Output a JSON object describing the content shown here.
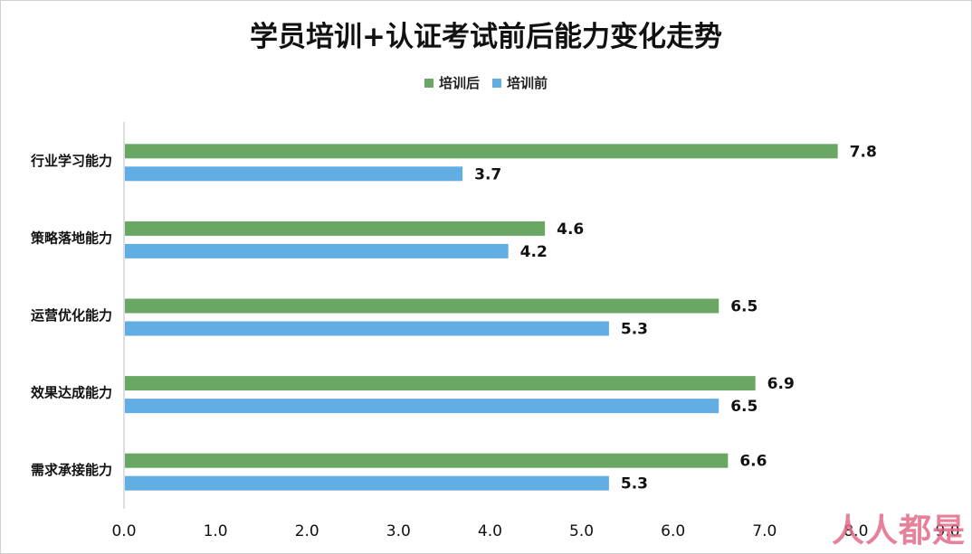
{
  "chart_data": {
    "type": "bar",
    "orientation": "horizontal",
    "title": "学员培训+认证考试前后能力变化走势",
    "categories": [
      "行业学习能力",
      "策略落地能力",
      "运营优化能力",
      "效果达成能力",
      "需求承接能力"
    ],
    "series": [
      {
        "name": "培训后",
        "color": "#6aa765",
        "values": [
          7.8,
          4.6,
          6.5,
          6.9,
          6.6
        ]
      },
      {
        "name": "培训前",
        "color": "#62aee4",
        "values": [
          3.7,
          4.2,
          5.3,
          6.5,
          5.3
        ]
      }
    ],
    "xlim": [
      0,
      9
    ],
    "xticks": [
      "0.0",
      "1.0",
      "2.0",
      "3.0",
      "4.0",
      "5.0",
      "6.0",
      "7.0",
      "8.0",
      "9.0"
    ],
    "legend_position": "top-center",
    "grid": false
  },
  "watermark": "人人都是产品经理"
}
